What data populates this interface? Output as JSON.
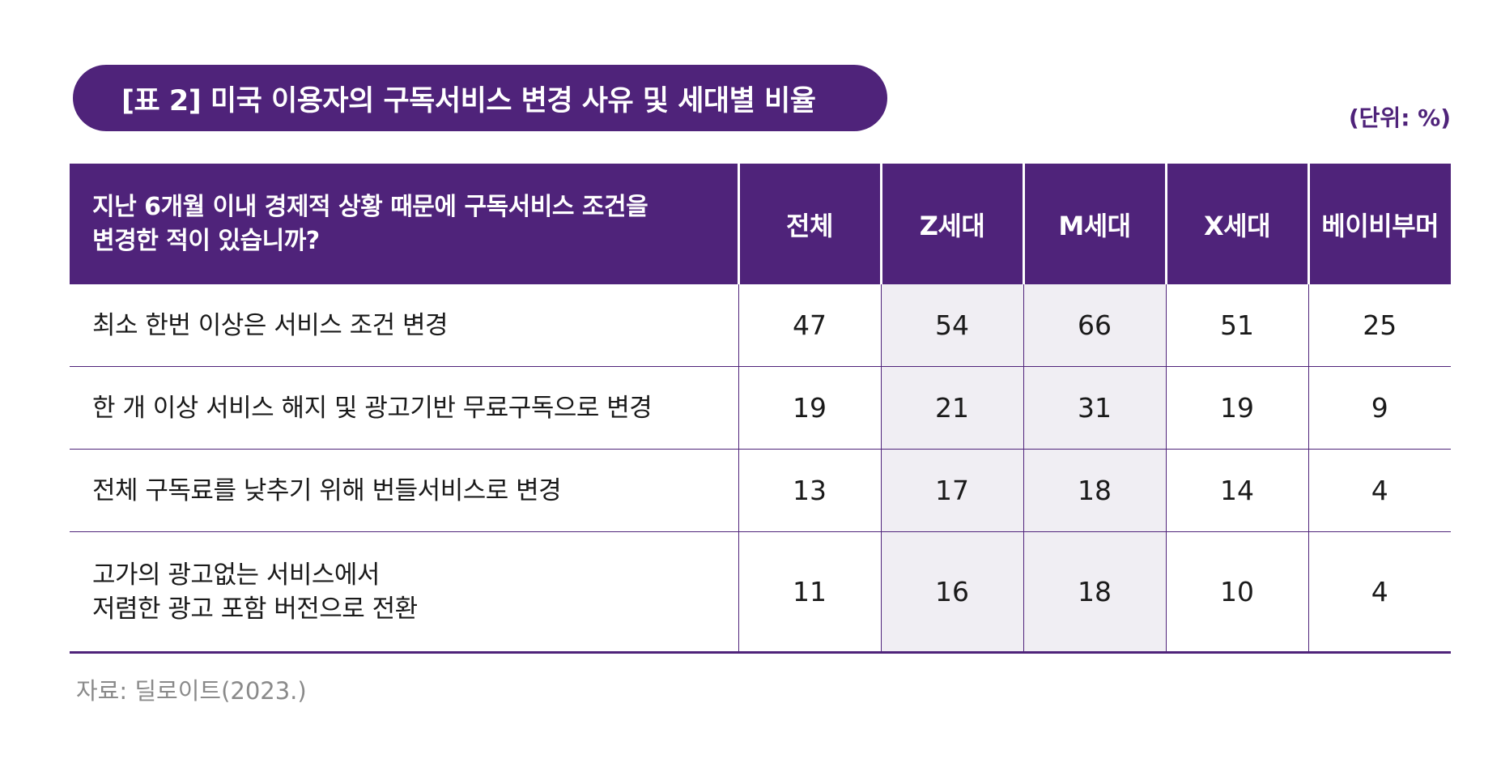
{
  "title": "[표 2] 미국 이용자의 구독서비스 변경 사유 및 세대별 비율",
  "unit": "(단위: %)",
  "table": {
    "question_line1": "지난 6개월 이내 경제적 상황 때문에 구독서비스 조건을",
    "question_line2": "변경한 적이 있습니까?",
    "columns": [
      "전체",
      "Z세대",
      "M세대",
      "X세대",
      "베이비부머"
    ],
    "rows": [
      {
        "label_line1": "최소 한번 이상은 서비스 조건 변경",
        "label_line2": "",
        "values": [
          "47",
          "54",
          "66",
          "51",
          "25"
        ]
      },
      {
        "label_line1": "한 개 이상 서비스 해지 및 광고기반 무료구독으로 변경",
        "label_line2": "",
        "values": [
          "19",
          "21",
          "31",
          "19",
          "9"
        ]
      },
      {
        "label_line1": "전체 구독료를 낮추기 위해 번들서비스로 변경",
        "label_line2": "",
        "values": [
          "13",
          "17",
          "18",
          "14",
          "4"
        ]
      },
      {
        "label_line1": "고가의 광고없는 서비스에서",
        "label_line2": "저렴한 광고 포함 버전으로 전환",
        "values": [
          "11",
          "16",
          "18",
          "10",
          "4"
        ]
      }
    ]
  },
  "source": "자료: 딜로이트(2023.)",
  "colors": {
    "accent": "#4f237a",
    "shaded_cell": "#f0eef3"
  }
}
